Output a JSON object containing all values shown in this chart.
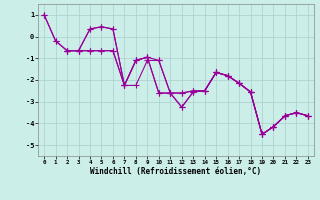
{
  "xlabel": "Windchill (Refroidissement éolien,°C)",
  "background_color": "#cceee8",
  "grid_color": "#aacccc",
  "line_color": "#990099",
  "xlim": [
    -0.5,
    23.5
  ],
  "ylim": [
    -5.5,
    1.5
  ],
  "yticks": [
    -5,
    -4,
    -3,
    -2,
    -1,
    0,
    1
  ],
  "xticks": [
    0,
    1,
    2,
    3,
    4,
    5,
    6,
    7,
    8,
    9,
    10,
    11,
    12,
    13,
    14,
    15,
    16,
    17,
    18,
    19,
    20,
    21,
    22,
    23
  ],
  "lines": [
    {
      "x": [
        0,
        1,
        2,
        3,
        4,
        5,
        6,
        7,
        8,
        9,
        10,
        11,
        12,
        13,
        14,
        15,
        16,
        17,
        18,
        19,
        20,
        21,
        22,
        23
      ],
      "y": [
        1.0,
        -0.2,
        -0.65,
        -0.65,
        0.35,
        0.45,
        0.35,
        -2.25,
        -1.1,
        -0.95,
        -2.6,
        -2.6,
        -3.25,
        -2.55,
        -2.5,
        -1.65,
        -1.8,
        -2.15,
        -2.55,
        -4.5,
        -4.15,
        -3.65,
        -3.5,
        -3.65
      ]
    },
    {
      "x": [
        0,
        1,
        2,
        3,
        4,
        5,
        6,
        7,
        8,
        9,
        10,
        11,
        12,
        13,
        14,
        15,
        16,
        17,
        18,
        19,
        20,
        21,
        22,
        23
      ],
      "y": [
        1.0,
        -0.2,
        -0.65,
        -0.65,
        -0.65,
        -0.65,
        -0.65,
        -2.25,
        -1.1,
        -0.95,
        -2.6,
        -2.6,
        -2.6,
        -2.5,
        -2.5,
        -1.65,
        -1.8,
        -2.15,
        -2.55,
        -4.5,
        -4.15,
        -3.65,
        -3.5,
        -3.65
      ]
    },
    {
      "x": [
        2,
        3,
        4,
        5,
        6,
        7,
        8,
        9,
        10,
        11,
        12,
        13,
        14,
        15,
        16,
        17,
        18,
        19,
        20,
        21,
        22,
        23
      ],
      "y": [
        -0.65,
        -0.65,
        0.35,
        0.45,
        0.35,
        -2.25,
        -1.1,
        -0.95,
        -1.1,
        -2.6,
        -3.25,
        -2.55,
        -2.5,
        -1.65,
        -1.8,
        -2.15,
        -2.55,
        -4.5,
        -4.15,
        -3.65,
        -3.5,
        -3.65
      ]
    },
    {
      "x": [
        2,
        3,
        4,
        5,
        6,
        7,
        8,
        9,
        10,
        11,
        12,
        13,
        14,
        15,
        16,
        17,
        18,
        19,
        20,
        21,
        22,
        23
      ],
      "y": [
        -0.65,
        -0.65,
        -0.65,
        -0.65,
        -0.65,
        -2.25,
        -2.25,
        -1.1,
        -1.1,
        -2.6,
        -2.6,
        -2.5,
        -2.5,
        -1.65,
        -1.8,
        -2.15,
        -2.55,
        -4.5,
        -4.15,
        -3.65,
        -3.5,
        -3.65
      ]
    }
  ],
  "marker": "+",
  "markersize": 4,
  "linewidth": 0.8
}
